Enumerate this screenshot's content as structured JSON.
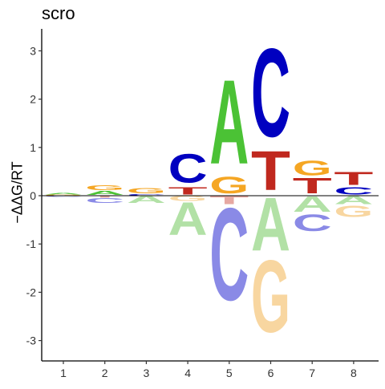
{
  "chart_data": {
    "type": "sequence-logo",
    "title": "scro",
    "ylabel": "−ΔΔG/RT",
    "xlabel": "",
    "positions": [
      "1",
      "2",
      "3",
      "4",
      "5",
      "6",
      "7",
      "8"
    ],
    "ylim": [
      -3.45,
      3.45
    ],
    "yticks": [
      "3",
      "2",
      "1",
      "0",
      "-1",
      "-2",
      "-3"
    ],
    "grid": false,
    "legend": "none",
    "colors": {
      "A": "#4bc235",
      "C": "#0000c0",
      "G": "#f5a623",
      "T": "#c0281e",
      "A_below": "#b2e1a6",
      "C_below": "#8a8ae6",
      "G_below": "#f8d6a0",
      "T_below": "#e6a8a2"
    },
    "letters": [
      {
        "position": "1",
        "stack": "above",
        "letter": "G",
        "value": 0.02
      },
      {
        "position": "1",
        "stack": "above",
        "letter": "A",
        "value": 0.03
      },
      {
        "position": "1",
        "stack": "below",
        "letter": "C",
        "value": -0.03
      },
      {
        "position": "2",
        "stack": "above",
        "letter": "A",
        "value": 0.1
      },
      {
        "position": "2",
        "stack": "above",
        "letter": "G",
        "value": 0.11
      },
      {
        "position": "2",
        "stack": "below",
        "letter": "T",
        "value": -0.05
      },
      {
        "position": "2",
        "stack": "below",
        "letter": "C",
        "value": -0.11
      },
      {
        "position": "3",
        "stack": "above",
        "letter": "C",
        "value": 0.03
      },
      {
        "position": "3",
        "stack": "above",
        "letter": "G",
        "value": 0.12
      },
      {
        "position": "3",
        "stack": "below",
        "letter": "A",
        "value": -0.17
      },
      {
        "position": "4",
        "stack": "above",
        "letter": "T",
        "value": 0.18
      },
      {
        "position": "4",
        "stack": "above",
        "letter": "C",
        "value": 0.7
      },
      {
        "position": "4",
        "stack": "below",
        "letter": "G",
        "value": -0.12
      },
      {
        "position": "4",
        "stack": "below",
        "letter": "A",
        "value": -0.8
      },
      {
        "position": "5",
        "stack": "above",
        "letter": "G",
        "value": 0.4
      },
      {
        "position": "5",
        "stack": "above",
        "letter": "A",
        "value": 2.05
      },
      {
        "position": "5",
        "stack": "below",
        "letter": "T",
        "value": -0.2
      },
      {
        "position": "5",
        "stack": "below",
        "letter": "C",
        "value": -2.25
      },
      {
        "position": "6",
        "stack": "above",
        "letter": "T",
        "value": 0.95
      },
      {
        "position": "6",
        "stack": "above",
        "letter": "C",
        "value": 2.15
      },
      {
        "position": "6",
        "stack": "below",
        "letter": "A",
        "value": -1.3
      },
      {
        "position": "6",
        "stack": "below",
        "letter": "G",
        "value": -1.75
      },
      {
        "position": "7",
        "stack": "above",
        "letter": "T",
        "value": 0.38
      },
      {
        "position": "7",
        "stack": "above",
        "letter": "G",
        "value": 0.35
      },
      {
        "position": "7",
        "stack": "below",
        "letter": "A",
        "value": -0.38
      },
      {
        "position": "7",
        "stack": "below",
        "letter": "C",
        "value": -0.4
      },
      {
        "position": "8",
        "stack": "above",
        "letter": "C",
        "value": 0.18
      },
      {
        "position": "8",
        "stack": "above",
        "letter": "T",
        "value": 0.32
      },
      {
        "position": "8",
        "stack": "below",
        "letter": "A",
        "value": -0.2
      },
      {
        "position": "8",
        "stack": "below",
        "letter": "G",
        "value": -0.28
      }
    ]
  }
}
